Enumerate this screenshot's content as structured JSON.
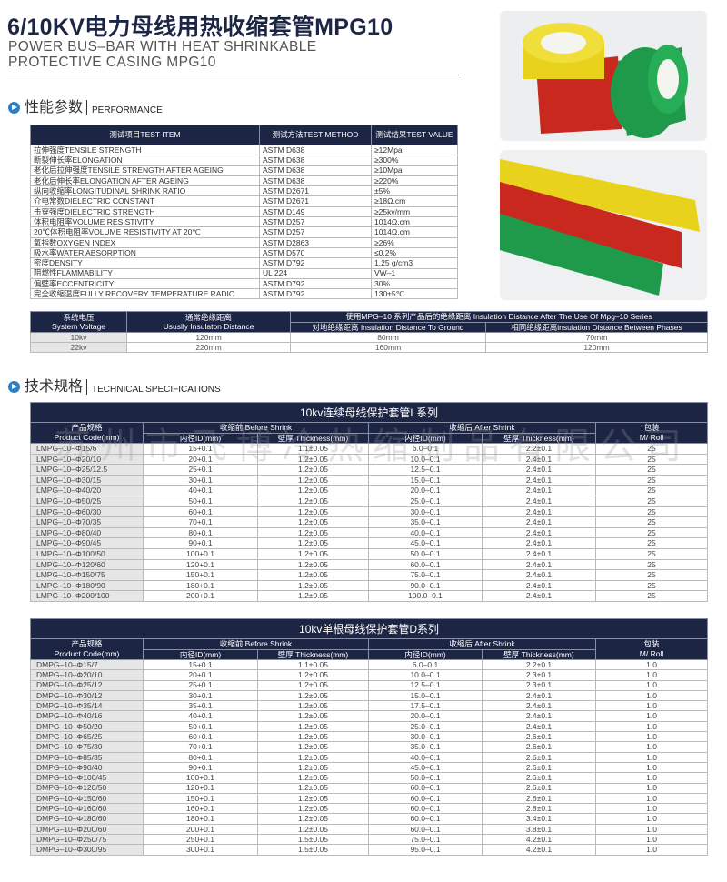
{
  "header": {
    "title": "6/10KV电力母线用热收缩套管MPG10",
    "subtitle_line1": "POWER BUS–BAR WITH HEAT SHRINKABLE",
    "subtitle_line2": "PROTECTIVE CASING MPG10"
  },
  "performance": {
    "section_cn": "性能参数",
    "section_en": "PERFORMANCE",
    "headers": [
      "测试项目TEST ITEM",
      "测试方法TEST METHOD",
      "测试结果TEST VALUE"
    ],
    "rows": [
      [
        "拉伸强度TENSILE STRENGTH",
        "ASTM D638",
        "≥12Mpa"
      ],
      [
        "断裂伸长率ELONGATION",
        "ASTM D638",
        "≥300%"
      ],
      [
        "老化后拉伸强度TENSILE STRENGTH AFTER AGEING",
        "ASTM D638",
        "≥10Mpa"
      ],
      [
        "老化后伸长率ELONGATION AFTER AGEING",
        "ASTM D638",
        "≥220%"
      ],
      [
        "纵向收缩率LONGITUDINAL SHRINK RATIO",
        "ASTM D2671",
        "±5%"
      ],
      [
        "介电常数DIELECTRIC CONSTANT",
        "ASTM D2671",
        "≥18Ω.cm"
      ],
      [
        "击穿强度DIELECTRIC STRENGTH",
        "ASTM D149",
        "≥25kv/mm"
      ],
      [
        "体积电阻率VOLUME RESISTIVITY",
        "ASTM D257",
        "1014Ω.cm"
      ],
      [
        "20℃体积电阻率VOLUME RESISTIVITY AT 20℃",
        "ASTM D257",
        "1014Ω.cm"
      ],
      [
        "氧指数OXYGEN INDEX",
        "ASTM D2863",
        "≥26%"
      ],
      [
        "吸水率WATER ABSORPTION",
        "ASTM D570",
        "≤0.2%"
      ],
      [
        "密度DENSITY",
        "ASTM D792",
        "1.25 g/cm3"
      ],
      [
        "阻燃性FLAMMABILITY",
        "UL 224",
        "VW–1"
      ],
      [
        "偏壁率ECCENTRICITY",
        "ASTM D792",
        "30%"
      ],
      [
        "完全收缩温度FULLY RECOVERY TEMPERATURE RADIO",
        "ASTM D792",
        "130±5℃"
      ]
    ]
  },
  "insulation": {
    "h_voltage": "系统电压\nSystem Voltage",
    "h_usual": "通常绝缘距离\nUsuslly Insulaton Distance",
    "h_after": "使用MPG–10 系列产品后的绝缘距离 Insulation Distance After The Use Of Mpg–10 Series",
    "h_ground": "对地绝缘距离 Insulation Distance To Ground",
    "h_phases": "相同绝缘距离insulation Distance Between Phases",
    "rows": [
      [
        "10kv",
        "120mm",
        "80mm",
        "70mm"
      ],
      [
        "22kv",
        "220mm",
        "160mm",
        "120mm"
      ]
    ]
  },
  "technical": {
    "section_cn": "技术规格",
    "section_en": "TECHNICAL SPECIFICATIONS"
  },
  "spec_headers": {
    "product": "产品规格\nProduct Code(mm)",
    "before": "收缩前 Before Shrink",
    "after": "收缩后 After Shrink",
    "pack": "包装\nM/ Roll",
    "id": "内径ID(mm)",
    "thick": "壁厚 Thickness(mm)"
  },
  "l_series": {
    "title": "10kv连续母线保护套管L系列",
    "rows": [
      [
        "LMPG–10–Φ15/6",
        "15+0.1",
        "1.1±0.05",
        "6.0–0.1",
        "2.2±0.1",
        "25"
      ],
      [
        "LMPG–10–Φ20/10",
        "20+0.1",
        "1.2±0.05",
        "10.0–0.1",
        "2.4±0.1",
        "25"
      ],
      [
        "LMPG–10–Φ25/12.5",
        "25+0.1",
        "1.2±0.05",
        "12.5–0.1",
        "2.4±0.1",
        "25"
      ],
      [
        "LMPG–10–Φ30/15",
        "30+0.1",
        "1.2±0.05",
        "15.0–0.1",
        "2.4±0.1",
        "25"
      ],
      [
        "LMPG–10–Φ40/20",
        "40+0.1",
        "1.2±0.05",
        "20.0–0.1",
        "2.4±0.1",
        "25"
      ],
      [
        "LMPG–10–Φ50/25",
        "50+0.1",
        "1.2±0.05",
        "25.0–0.1",
        "2.4±0.1",
        "25"
      ],
      [
        "LMPG–10–Φ60/30",
        "60+0.1",
        "1.2±0.05",
        "30.0–0.1",
        "2.4±0.1",
        "25"
      ],
      [
        "LMPG–10–Φ70/35",
        "70+0.1",
        "1.2±0.05",
        "35.0–0.1",
        "2.4±0.1",
        "25"
      ],
      [
        "LMPG–10–Φ80/40",
        "80+0.1",
        "1.2±0.05",
        "40.0–0.1",
        "2.4±0.1",
        "25"
      ],
      [
        "LMPG–10–Φ90/45",
        "90+0.1",
        "1.2±0.05",
        "45.0–0.1",
        "2.4±0.1",
        "25"
      ],
      [
        "LMPG–10–Φ100/50",
        "100+0.1",
        "1.2±0.05",
        "50.0–0.1",
        "2.4±0.1",
        "25"
      ],
      [
        "LMPG–10–Φ120/60",
        "120+0.1",
        "1.2±0.05",
        "60.0–0.1",
        "2.4±0.1",
        "25"
      ],
      [
        "LMPG–10–Φ150/75",
        "150+0.1",
        "1.2±0.05",
        "75.0–0.1",
        "2.4±0.1",
        "25"
      ],
      [
        "LMPG–10–Φ180/90",
        "180+0.1",
        "1.2±0.05",
        "90.0–0.1",
        "2.4±0.1",
        "25"
      ],
      [
        "LMPG–10–Φ200/100",
        "200+0.1",
        "1.2±0.05",
        "100.0–0.1",
        "2.4±0.1",
        "25"
      ]
    ]
  },
  "d_series": {
    "title": "10kv单根母线保护套管D系列",
    "rows": [
      [
        "DMPG–10–Φ15/7",
        "15+0.1",
        "1.1±0.05",
        "6.0–0.1",
        "2.2±0.1",
        "1.0"
      ],
      [
        "DMPG–10–Φ20/10",
        "20+0.1",
        "1.2±0.05",
        "10.0–0.1",
        "2.3±0.1",
        "1.0"
      ],
      [
        "DMPG–10–Φ25/12",
        "25+0.1",
        "1.2±0.05",
        "12.5–0.1",
        "2.3±0.1",
        "1.0"
      ],
      [
        "DMPG–10–Φ30/12",
        "30+0.1",
        "1.2±0.05",
        "15.0–0.1",
        "2.4±0.1",
        "1.0"
      ],
      [
        "DMPG–10–Φ35/14",
        "35+0.1",
        "1.2±0.05",
        "17.5–0.1",
        "2.4±0.1",
        "1.0"
      ],
      [
        "DMPG–10–Φ40/16",
        "40+0.1",
        "1.2±0.05",
        "20.0–0.1",
        "2.4±0.1",
        "1.0"
      ],
      [
        "DMPG–10–Φ50/20",
        "50+0.1",
        "1.2±0.05",
        "25.0–0.1",
        "2.4±0.1",
        "1.0"
      ],
      [
        "DMPG–10–Φ65/25",
        "60+0.1",
        "1.2±0.05",
        "30.0–0.1",
        "2.6±0.1",
        "1.0"
      ],
      [
        "DMPG–10–Φ75/30",
        "70+0.1",
        "1.2±0.05",
        "35.0–0.1",
        "2.6±0.1",
        "1.0"
      ],
      [
        "DMPG–10–Φ85/35",
        "80+0.1",
        "1.2±0.05",
        "40.0–0.1",
        "2.6±0.1",
        "1.0"
      ],
      [
        "DMPG–10–Φ90/40",
        "90+0.1",
        "1.2±0.05",
        "45.0–0.1",
        "2.6±0.1",
        "1.0"
      ],
      [
        "DMPG–10–Φ100/45",
        "100+0.1",
        "1.2±0.05",
        "50.0–0.1",
        "2.6±0.1",
        "1.0"
      ],
      [
        "DMPG–10–Φ120/50",
        "120+0.1",
        "1.2±0.05",
        "60.0–0.1",
        "2.6±0.1",
        "1.0"
      ],
      [
        "DMPG–10–Φ150/60",
        "150+0.1",
        "1.2±0.05",
        "60.0–0.1",
        "2.6±0.1",
        "1.0"
      ],
      [
        "DMPG–10–Φ160/60",
        "160+0.1",
        "1.2±0.05",
        "60.0–0.1",
        "2.8±0.1",
        "1.0"
      ],
      [
        "DMPG–10–Φ180/60",
        "180+0.1",
        "1.2±0.05",
        "60.0–0.1",
        "3.4±0.1",
        "1.0"
      ],
      [
        "DMPG–10–Φ200/60",
        "200+0.1",
        "1.2±0.05",
        "60.0–0.1",
        "3.8±0.1",
        "1.0"
      ],
      [
        "DMPG–10–Φ250/75",
        "250+0.1",
        "1.5±0.05",
        "75.0–0.1",
        "4.2±0.1",
        "1.0"
      ],
      [
        "DMPG–10–Φ300/95",
        "300+0.1",
        "1.5±0.05",
        "95.0–0.1",
        "4.2±0.1",
        "1.0"
      ]
    ]
  },
  "watermark": "苏州市飞博冷热缩制品有限公司",
  "colors": {
    "header_bg": "#1d2545",
    "yellow": "#e8d21c",
    "green": "#1f9a4a",
    "red": "#c8281e"
  }
}
